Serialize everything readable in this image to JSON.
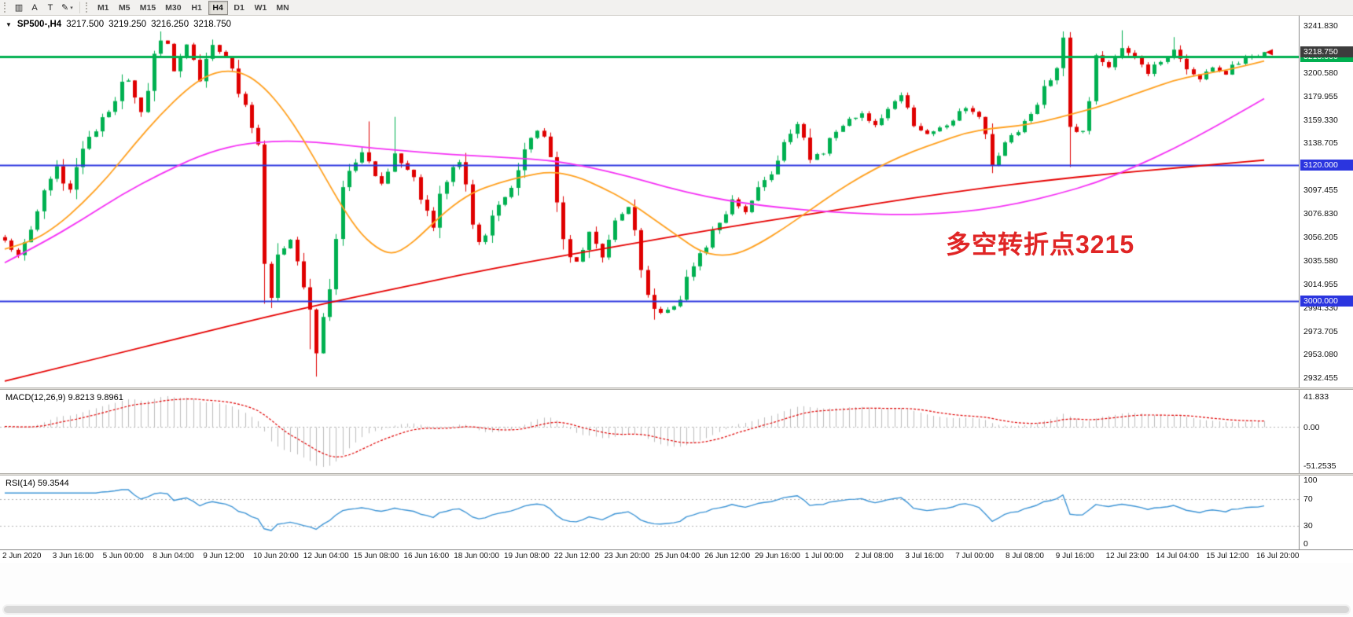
{
  "toolbar": {
    "buttons": [
      {
        "name": "charts-grid-button",
        "glyph": "▥"
      },
      {
        "name": "text-label-button",
        "glyph": "A"
      },
      {
        "name": "text-tool-button",
        "glyph": "T"
      },
      {
        "name": "draw-objects-button",
        "glyph": "✎",
        "dropdown": "▾"
      }
    ],
    "timeframes": [
      "M1",
      "M5",
      "M15",
      "M30",
      "H1",
      "H4",
      "D1",
      "W1",
      "MN"
    ],
    "active_timeframe": "H4"
  },
  "chart_header": {
    "expander": "▼",
    "symbol": "SP500-,H4",
    "open": "3217.500",
    "high": "3219.250",
    "low": "3216.250",
    "close": "3218.750"
  },
  "chart_data": {
    "type": "candlestick",
    "symbol": "SP500-",
    "timeframe": "H4",
    "bars": 195,
    "price_min": 2929.955,
    "price_max": 3241.83,
    "y_axis_labels": [
      "3241.830",
      "3221.205",
      "3200.580",
      "3179.955",
      "3159.330",
      "3138.705",
      "3118.080",
      "3097.455",
      "3076.830",
      "3056.205",
      "3035.580",
      "3014.955",
      "2994.330",
      "2973.705",
      "2953.080",
      "2932.455"
    ],
    "x_axis_labels": [
      "2 Jun 2020",
      "3 Jun 16:00",
      "5 Jun 00:00",
      "8 Jun 04:00",
      "9 Jun 12:00",
      "10 Jun 20:00",
      "12 Jun 04:00",
      "15 Jun 08:00",
      "16 Jun 16:00",
      "18 Jun 00:00",
      "19 Jun 08:00",
      "22 Jun 12:00",
      "23 Jun 20:00",
      "25 Jun 04:00",
      "26 Jun 12:00",
      "29 Jun 16:00",
      "1 Jul 00:00",
      "2 Jul 08:00",
      "3 Jul 16:00",
      "7 Jul 00:00",
      "8 Jul 08:00",
      "9 Jul 16:00",
      "12 Jul 23:00",
      "14 Jul 04:00",
      "15 Jul 12:00",
      "16 Jul 20:00"
    ],
    "h_lines": [
      {
        "price": 3215,
        "label": "3215.000",
        "color": "#00B050",
        "width": 3
      },
      {
        "price": 3120,
        "label": "3120.000",
        "color": "#2B35DF",
        "width": 2
      },
      {
        "price": 3000,
        "label": "3000.000",
        "color": "#2B35DF",
        "width": 2
      }
    ],
    "current_price": {
      "price": 3218.75,
      "label": "3218.750",
      "badge_color": "#3d3d3d",
      "arrow_color": "#E00000"
    },
    "colors": {
      "up": "#00B050",
      "down": "#DF0000",
      "ma_fast": "#FFA01E",
      "ma_mid": "#F531F5",
      "ma_slow": "#E60000",
      "macd_hist": "#BDBDBD",
      "macd_signal": "#E00000",
      "rsi_line": "#3E95D6",
      "level_line": "#b5b5b5"
    },
    "close_anchors": [
      [
        0,
        3052
      ],
      [
        1,
        3044
      ],
      [
        2,
        3040
      ],
      [
        3,
        3052
      ],
      [
        4,
        3064
      ],
      [
        5,
        3080
      ],
      [
        6,
        3096
      ],
      [
        7,
        3108
      ],
      [
        8,
        3118
      ],
      [
        9,
        3106
      ],
      [
        10,
        3098
      ],
      [
        11,
        3114
      ],
      [
        12,
        3132
      ],
      [
        13,
        3144
      ],
      [
        14,
        3152
      ],
      [
        15,
        3160
      ],
      [
        16,
        3168
      ],
      [
        17,
        3178
      ],
      [
        18,
        3190
      ],
      [
        19,
        3196
      ],
      [
        20,
        3176
      ],
      [
        21,
        3166
      ],
      [
        22,
        3186
      ],
      [
        23,
        3212
      ],
      [
        24,
        3230
      ],
      [
        25,
        3222
      ],
      [
        26,
        3202
      ],
      [
        27,
        3212
      ],
      [
        28,
        3224
      ],
      [
        29,
        3208
      ],
      [
        30,
        3194
      ],
      [
        31,
        3210
      ],
      [
        32,
        3224
      ],
      [
        33,
        3218
      ],
      [
        34,
        3212
      ],
      [
        35,
        3200
      ],
      [
        36,
        3186
      ],
      [
        37,
        3168
      ],
      [
        38,
        3148
      ],
      [
        39,
        3132
      ],
      [
        40,
        3016
      ],
      [
        41,
        3004
      ],
      [
        42,
        3038
      ],
      [
        43,
        3046
      ],
      [
        44,
        3056
      ],
      [
        45,
        3036
      ],
      [
        46,
        3012
      ],
      [
        47,
        2988
      ],
      [
        48,
        2954
      ],
      [
        49,
        2986
      ],
      [
        50,
        3018
      ],
      [
        51,
        3058
      ],
      [
        52,
        3096
      ],
      [
        53,
        3114
      ],
      [
        54,
        3124
      ],
      [
        55,
        3130
      ],
      [
        56,
        3120
      ],
      [
        57,
        3112
      ],
      [
        58,
        3102
      ],
      [
        59,
        3118
      ],
      [
        60,
        3130
      ],
      [
        61,
        3124
      ],
      [
        62,
        3114
      ],
      [
        63,
        3106
      ],
      [
        64,
        3094
      ],
      [
        65,
        3078
      ],
      [
        66,
        3064
      ],
      [
        67,
        3090
      ],
      [
        68,
        3108
      ],
      [
        69,
        3118
      ],
      [
        70,
        3124
      ],
      [
        71,
        3096
      ],
      [
        72,
        3062
      ],
      [
        73,
        3054
      ],
      [
        74,
        3058
      ],
      [
        75,
        3074
      ],
      [
        76,
        3088
      ],
      [
        77,
        3094
      ],
      [
        78,
        3100
      ],
      [
        79,
        3120
      ],
      [
        80,
        3138
      ],
      [
        81,
        3146
      ],
      [
        82,
        3150
      ],
      [
        83,
        3142
      ],
      [
        84,
        3130
      ],
      [
        85,
        3096
      ],
      [
        86,
        3056
      ],
      [
        87,
        3042
      ],
      [
        88,
        3036
      ],
      [
        89,
        3048
      ],
      [
        90,
        3060
      ],
      [
        91,
        3050
      ],
      [
        92,
        3040
      ],
      [
        93,
        3056
      ],
      [
        94,
        3070
      ],
      [
        95,
        3076
      ],
      [
        96,
        3080
      ],
      [
        97,
        3058
      ],
      [
        98,
        3030
      ],
      [
        99,
        3010
      ],
      [
        100,
        2996
      ],
      [
        101,
        2990
      ],
      [
        102,
        2992
      ],
      [
        103,
        2996
      ],
      [
        104,
        3002
      ],
      [
        105,
        3020
      ],
      [
        106,
        3034
      ],
      [
        107,
        3042
      ],
      [
        108,
        3050
      ],
      [
        109,
        3060
      ],
      [
        110,
        3070
      ],
      [
        111,
        3080
      ],
      [
        112,
        3090
      ],
      [
        113,
        3084
      ],
      [
        114,
        3080
      ],
      [
        115,
        3090
      ],
      [
        116,
        3100
      ],
      [
        117,
        3106
      ],
      [
        118,
        3112
      ],
      [
        119,
        3126
      ],
      [
        120,
        3140
      ],
      [
        121,
        3148
      ],
      [
        122,
        3154
      ],
      [
        123,
        3140
      ],
      [
        124,
        3126
      ],
      [
        125,
        3128
      ],
      [
        126,
        3130
      ],
      [
        127,
        3140
      ],
      [
        128,
        3150
      ],
      [
        129,
        3156
      ],
      [
        130,
        3160
      ],
      [
        131,
        3162
      ],
      [
        132,
        3164
      ],
      [
        133,
        3160
      ],
      [
        134,
        3156
      ],
      [
        135,
        3162
      ],
      [
        136,
        3170
      ],
      [
        137,
        3176
      ],
      [
        138,
        3180
      ],
      [
        139,
        3168
      ],
      [
        140,
        3156
      ],
      [
        141,
        3150
      ],
      [
        142,
        3146
      ],
      [
        143,
        3148
      ],
      [
        144,
        3152
      ],
      [
        145,
        3156
      ],
      [
        146,
        3160
      ],
      [
        147,
        3166
      ],
      [
        148,
        3170
      ],
      [
        149,
        3168
      ],
      [
        150,
        3164
      ],
      [
        151,
        3142
      ],
      [
        152,
        3120
      ],
      [
        153,
        3130
      ],
      [
        154,
        3140
      ],
      [
        155,
        3146
      ],
      [
        156,
        3150
      ],
      [
        157,
        3158
      ],
      [
        158,
        3164
      ],
      [
        159,
        3174
      ],
      [
        160,
        3186
      ],
      [
        161,
        3194
      ],
      [
        162,
        3200
      ],
      [
        163,
        3228
      ],
      [
        164,
        3156
      ],
      [
        165,
        3150
      ],
      [
        166,
        3146
      ],
      [
        167,
        3180
      ],
      [
        168,
        3218
      ],
      [
        169,
        3212
      ],
      [
        170,
        3206
      ],
      [
        171,
        3216
      ],
      [
        172,
        3224
      ],
      [
        173,
        3220
      ],
      [
        174,
        3214
      ],
      [
        175,
        3206
      ],
      [
        176,
        3200
      ],
      [
        177,
        3206
      ],
      [
        178,
        3210
      ],
      [
        179,
        3216
      ],
      [
        180,
        3220
      ],
      [
        181,
        3212
      ],
      [
        182,
        3206
      ],
      [
        183,
        3200
      ],
      [
        184,
        3196
      ],
      [
        185,
        3200
      ],
      [
        186,
        3206
      ],
      [
        187,
        3202
      ],
      [
        188,
        3200
      ],
      [
        189,
        3206
      ],
      [
        190,
        3210
      ],
      [
        191,
        3212
      ],
      [
        192,
        3214
      ],
      [
        193,
        3216
      ],
      [
        194,
        3219
      ]
    ],
    "wick_overrides": [
      [
        24,
        "h",
        3237
      ],
      [
        40,
        "l",
        2998
      ],
      [
        47,
        "l",
        2958
      ],
      [
        48,
        "l",
        2934
      ],
      [
        56,
        "h",
        3158
      ],
      [
        60,
        "h",
        3162
      ],
      [
        100,
        "l",
        2984
      ],
      [
        163,
        "h",
        3237
      ],
      [
        164,
        "l",
        3118
      ],
      [
        172,
        "h",
        3238
      ],
      [
        180,
        "h",
        3232
      ]
    ],
    "ma_fast_anchors": [
      [
        0,
        3046
      ],
      [
        4,
        3052
      ],
      [
        8,
        3066
      ],
      [
        12,
        3086
      ],
      [
        16,
        3110
      ],
      [
        20,
        3138
      ],
      [
        24,
        3164
      ],
      [
        28,
        3186
      ],
      [
        31,
        3198
      ],
      [
        34,
        3203
      ],
      [
        37,
        3200
      ],
      [
        40,
        3188
      ],
      [
        43,
        3168
      ],
      [
        46,
        3142
      ],
      [
        49,
        3112
      ],
      [
        52,
        3082
      ],
      [
        55,
        3058
      ],
      [
        58,
        3044
      ],
      [
        60,
        3042
      ],
      [
        62,
        3048
      ],
      [
        64,
        3058
      ],
      [
        68,
        3080
      ],
      [
        72,
        3096
      ],
      [
        76,
        3104
      ],
      [
        80,
        3110
      ],
      [
        84,
        3114
      ],
      [
        88,
        3110
      ],
      [
        92,
        3100
      ],
      [
        96,
        3088
      ],
      [
        100,
        3072
      ],
      [
        104,
        3056
      ],
      [
        107,
        3044
      ],
      [
        110,
        3040
      ],
      [
        113,
        3042
      ],
      [
        116,
        3050
      ],
      [
        120,
        3064
      ],
      [
        124,
        3080
      ],
      [
        128,
        3096
      ],
      [
        132,
        3110
      ],
      [
        136,
        3122
      ],
      [
        140,
        3132
      ],
      [
        144,
        3140
      ],
      [
        148,
        3148
      ],
      [
        152,
        3152
      ],
      [
        156,
        3154
      ],
      [
        160,
        3158
      ],
      [
        164,
        3164
      ],
      [
        168,
        3170
      ],
      [
        172,
        3178
      ],
      [
        176,
        3186
      ],
      [
        180,
        3194
      ],
      [
        184,
        3199
      ],
      [
        188,
        3203
      ],
      [
        191,
        3207
      ],
      [
        194,
        3211
      ]
    ],
    "ma_mid_anchors": [
      [
        0,
        3034
      ],
      [
        6,
        3052
      ],
      [
        12,
        3072
      ],
      [
        18,
        3094
      ],
      [
        24,
        3112
      ],
      [
        30,
        3128
      ],
      [
        36,
        3138
      ],
      [
        42,
        3141
      ],
      [
        48,
        3140
      ],
      [
        54,
        3136
      ],
      [
        60,
        3133
      ],
      [
        66,
        3130
      ],
      [
        72,
        3128
      ],
      [
        78,
        3126
      ],
      [
        84,
        3124
      ],
      [
        90,
        3118
      ],
      [
        96,
        3110
      ],
      [
        102,
        3100
      ],
      [
        108,
        3092
      ],
      [
        114,
        3086
      ],
      [
        120,
        3082
      ],
      [
        126,
        3079
      ],
      [
        132,
        3077
      ],
      [
        138,
        3076
      ],
      [
        144,
        3077
      ],
      [
        150,
        3080
      ],
      [
        156,
        3086
      ],
      [
        162,
        3094
      ],
      [
        168,
        3104
      ],
      [
        174,
        3118
      ],
      [
        180,
        3134
      ],
      [
        186,
        3152
      ],
      [
        190,
        3165
      ],
      [
        194,
        3178
      ]
    ],
    "ma_slow_anchors": [
      [
        0,
        2930
      ],
      [
        10,
        2944
      ],
      [
        20,
        2958
      ],
      [
        30,
        2972
      ],
      [
        40,
        2986
      ],
      [
        50,
        2999
      ],
      [
        60,
        3011
      ],
      [
        70,
        3023
      ],
      [
        80,
        3034
      ],
      [
        90,
        3044
      ],
      [
        100,
        3054
      ],
      [
        110,
        3064
      ],
      [
        120,
        3073
      ],
      [
        130,
        3082
      ],
      [
        140,
        3091
      ],
      [
        150,
        3099
      ],
      [
        160,
        3106
      ],
      [
        170,
        3112
      ],
      [
        180,
        3117
      ],
      [
        188,
        3121
      ],
      [
        194,
        3124
      ]
    ],
    "macd": {
      "header": "MACD(12,26,9) 9.8213 9.8961",
      "params": [
        12,
        26,
        9
      ],
      "axis_labels": [
        "41.833",
        "0.00",
        "-51.2535"
      ]
    },
    "rsi": {
      "header": "RSI(14) 59.3544",
      "period": 14,
      "levels": [
        70,
        30
      ],
      "axis_labels": [
        "100",
        "70",
        "30",
        "0"
      ]
    },
    "annotation": {
      "text": "多空转折点3215",
      "color": "#E02525"
    }
  }
}
